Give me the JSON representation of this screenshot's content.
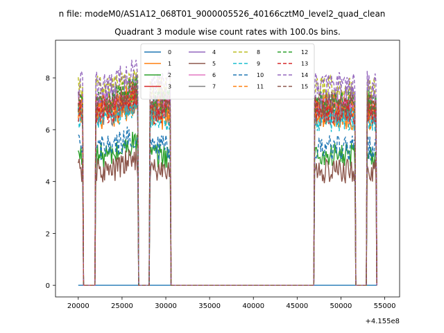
{
  "figure": {
    "suptitle": "n file: modeM0/AS1A12_068T01_9000005526_40166cztM0_level2_quad_clean",
    "offset_label": "+4.155e8"
  },
  "chart_data": {
    "type": "line",
    "title": "Quadrant 3 module wise count rates with 100.0s bins.",
    "xlabel": "",
    "ylabel": "",
    "xlim": [
      17400,
      56700
    ],
    "ylim": [
      -0.45,
      9.45
    ],
    "x_ticks": [
      20000,
      25000,
      30000,
      35000,
      40000,
      45000,
      50000,
      55000
    ],
    "x_tick_labels": [
      "20000",
      "25000",
      "30000",
      "35000",
      "40000",
      "45000",
      "50000",
      "55000"
    ],
    "y_ticks": [
      0,
      2,
      4,
      6,
      8
    ],
    "y_tick_labels": [
      "0",
      "2",
      "4",
      "6",
      "8"
    ],
    "grid": false,
    "legend": {
      "placement": "top-center",
      "columns": 4
    },
    "active_windows": [
      [
        20000,
        20500
      ],
      [
        22000,
        26800
      ],
      [
        28200,
        30500
      ],
      [
        47000,
        51600
      ],
      [
        53000,
        54000
      ]
    ],
    "series": [
      {
        "name": "0",
        "style": "solid",
        "color": "#1f77b4",
        "level": 0.0
      },
      {
        "name": "1",
        "style": "solid",
        "color": "#ff7f0e",
        "level": 6.5
      },
      {
        "name": "2",
        "style": "solid",
        "color": "#2ca02c",
        "level": 5.0
      },
      {
        "name": "3",
        "style": "solid",
        "color": "#d62728",
        "level": 6.8
      },
      {
        "name": "4",
        "style": "solid",
        "color": "#9467bd",
        "level": 7.2
      },
      {
        "name": "5",
        "style": "solid",
        "color": "#8c564b",
        "level": 4.4
      },
      {
        "name": "6",
        "style": "solid",
        "color": "#e377c2",
        "level": 6.9
      },
      {
        "name": "7",
        "style": "solid",
        "color": "#7f7f7f",
        "level": 6.6
      },
      {
        "name": "8",
        "style": "dashed",
        "color": "#bcbd22",
        "level": 7.6
      },
      {
        "name": "9",
        "style": "dashed",
        "color": "#17becf",
        "level": 6.4
      },
      {
        "name": "10",
        "style": "dashed",
        "color": "#1f77b4",
        "level": 5.3
      },
      {
        "name": "11",
        "style": "dashed",
        "color": "#ff7f0e",
        "level": 6.9
      },
      {
        "name": "12",
        "style": "dashed",
        "color": "#2ca02c",
        "level": 7.1
      },
      {
        "name": "13",
        "style": "dashed",
        "color": "#d62728",
        "level": 6.7
      },
      {
        "name": "14",
        "style": "dashed",
        "color": "#9467bd",
        "level": 7.8
      },
      {
        "name": "15",
        "style": "dashed",
        "color": "#8c564b",
        "level": 7.0
      }
    ]
  }
}
